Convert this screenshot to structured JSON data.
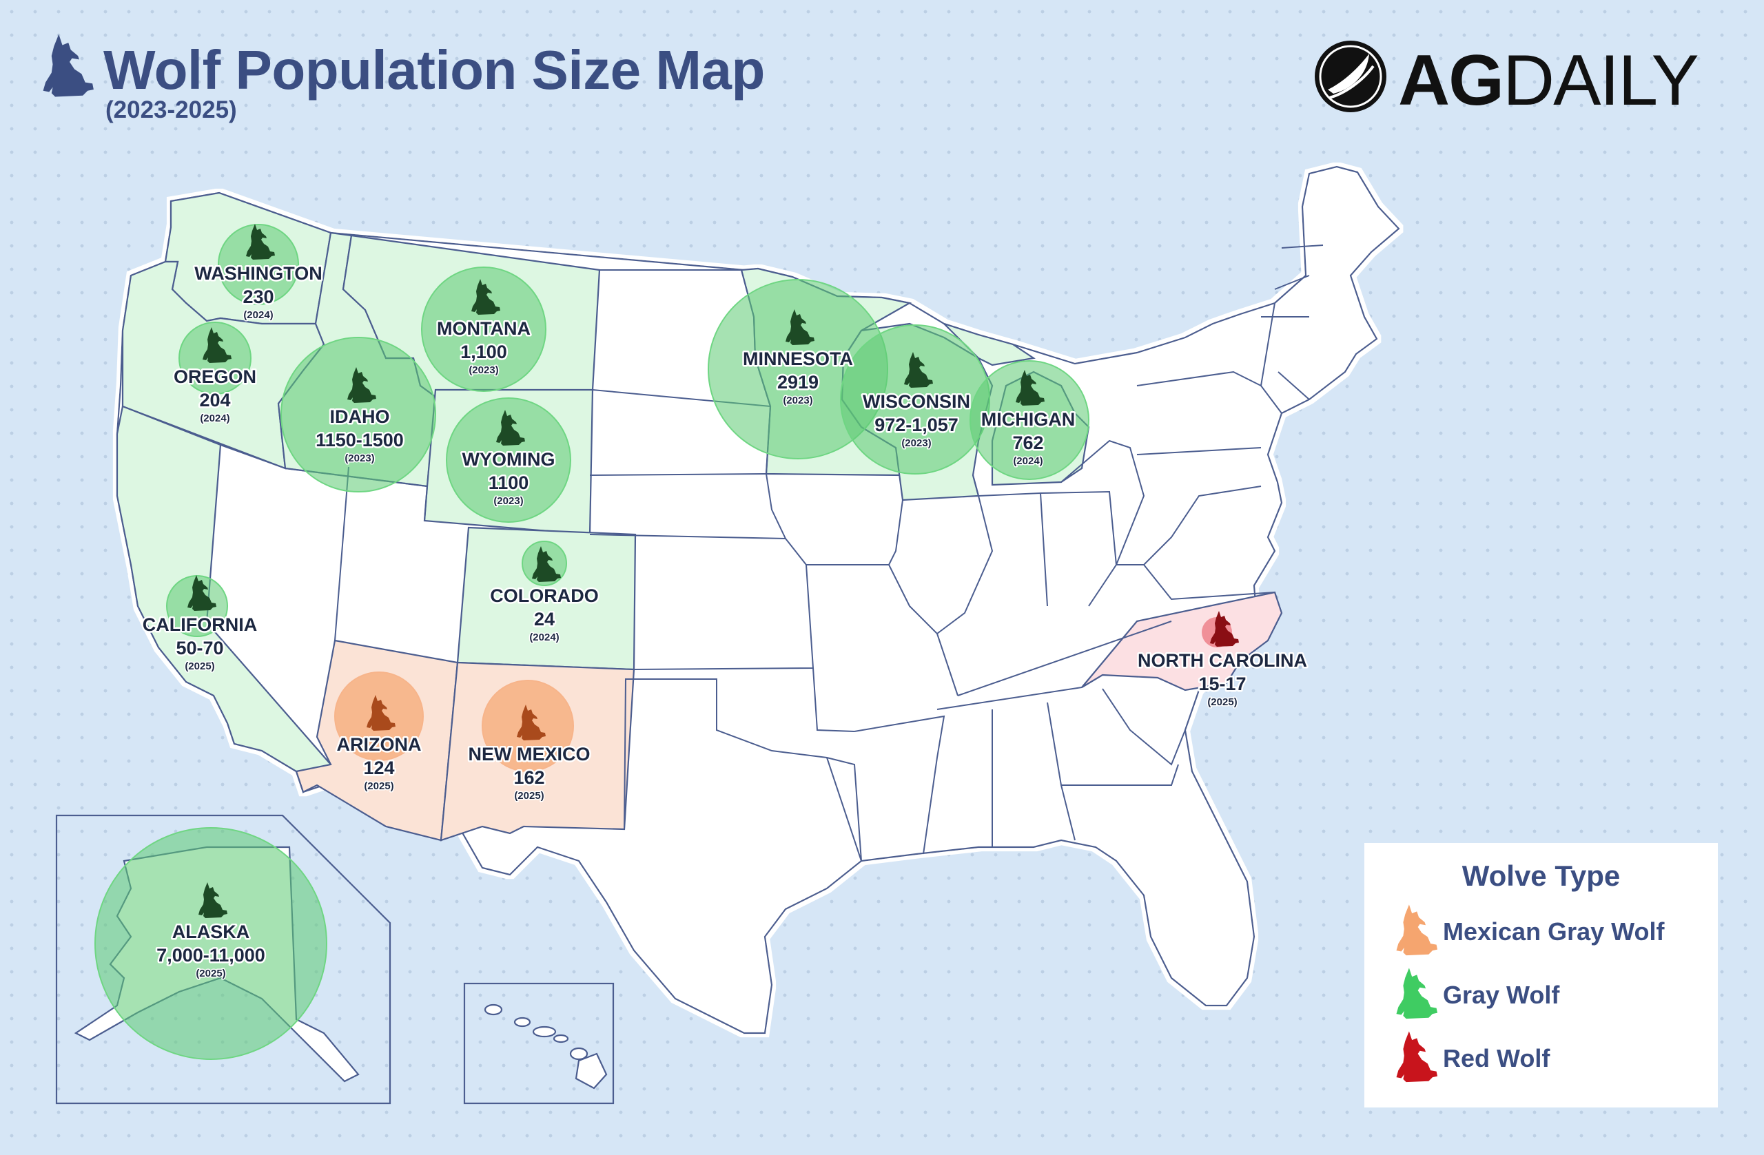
{
  "header": {
    "title": "Wolf Population Size Map",
    "subtitle": "(2023-2025)",
    "title_icon": "howling-wolf-icon"
  },
  "logo": {
    "brand_bold": "AG",
    "brand_light": "DAILY",
    "icon": "ag-daily-leaf-logo-icon"
  },
  "colors": {
    "title": "#3b4e82",
    "gray_wolf_fill": "#ddf7e2",
    "gray_wolf_circle": "#5ccb72",
    "mexican_gray_wolf_fill": "#fbe3d6",
    "mexican_gray_wolf_circle": "#f5a56f",
    "red_wolf_fill": "#fce0e3",
    "red_wolf_icon": "#b31c1c"
  },
  "states": [
    {
      "id": "washington",
      "name": "WASHINGTON",
      "value": "230",
      "year": "(2024)",
      "type": "gray"
    },
    {
      "id": "oregon",
      "name": "OREGON",
      "value": "204",
      "year": "(2024)",
      "type": "gray"
    },
    {
      "id": "idaho",
      "name": "IDAHO",
      "value": "1150-1500",
      "year": "(2023)",
      "type": "gray"
    },
    {
      "id": "montana",
      "name": "MONTANA",
      "value": "1,100",
      "year": "(2023)",
      "type": "gray"
    },
    {
      "id": "wyoming",
      "name": "WYOMING",
      "value": "1100",
      "year": "(2023)",
      "type": "gray"
    },
    {
      "id": "california",
      "name": "CALIFORNIA",
      "value": "50-70",
      "year": "(2025)",
      "type": "gray"
    },
    {
      "id": "colorado",
      "name": "COLORADO",
      "value": "24",
      "year": "(2024)",
      "type": "gray"
    },
    {
      "id": "arizona",
      "name": "ARIZONA",
      "value": "124",
      "year": "(2025)",
      "type": "mexican"
    },
    {
      "id": "new-mexico",
      "name": "NEW MEXICO",
      "value": "162",
      "year": "(2025)",
      "type": "mexican"
    },
    {
      "id": "minnesota",
      "name": "MINNESOTA",
      "value": "2919",
      "year": "(2023)",
      "type": "gray"
    },
    {
      "id": "wisconsin",
      "name": "WISCONSIN",
      "value": "972-1,057",
      "year": "(2023)",
      "type": "gray"
    },
    {
      "id": "michigan",
      "name": "MICHIGAN",
      "value": "762",
      "year": "(2024)",
      "type": "gray"
    },
    {
      "id": "north-carolina",
      "name": "NORTH CAROLINA",
      "value": "15-17",
      "year": "(2025)",
      "type": "red"
    },
    {
      "id": "alaska",
      "name": "ALASKA",
      "value": "7,000-11,000",
      "year": "(2025)",
      "type": "gray"
    }
  ],
  "legend": {
    "title": "Wolve Type",
    "items": [
      {
        "label": "Mexican Gray Wolf",
        "color": "#f5a56f",
        "icon": "orange-wolf-icon"
      },
      {
        "label": "Gray Wolf",
        "color": "#3fcc62",
        "icon": "green-wolf-icon"
      },
      {
        "label": "Red Wolf",
        "color": "#c8141c",
        "icon": "red-wolf-icon"
      }
    ]
  }
}
